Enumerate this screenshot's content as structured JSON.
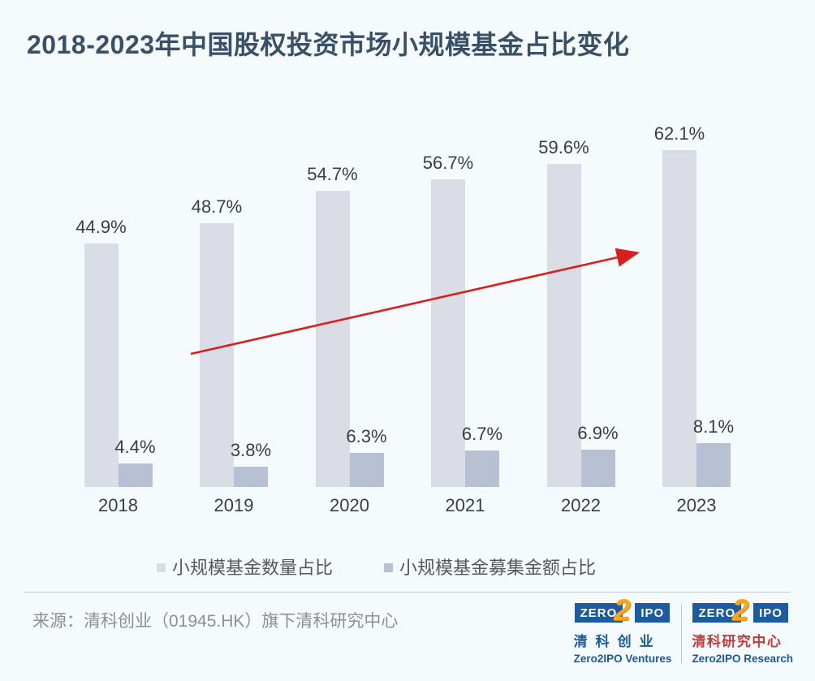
{
  "title": "2018-2023年中国股权投资市场小规模基金占比变化",
  "chart_data": {
    "type": "bar",
    "title": "2018-2023年中国股权投资市场小规模基金占比变化",
    "categories": [
      "2018",
      "2019",
      "2020",
      "2021",
      "2022",
      "2023"
    ],
    "series": [
      {
        "name": "小规模基金数量占比",
        "values": [
          44.9,
          48.7,
          54.7,
          56.7,
          59.6,
          62.1
        ],
        "labels": [
          "44.9%",
          "48.7%",
          "54.7%",
          "56.7%",
          "59.6%",
          "62.1%"
        ],
        "color": "#dadce6"
      },
      {
        "name": "小规模基金募集金额占比",
        "values": [
          4.4,
          3.8,
          6.3,
          6.7,
          6.9,
          8.1
        ],
        "labels": [
          "4.4%",
          "3.8%",
          "6.3%",
          "6.7%",
          "6.9%",
          "8.1%"
        ],
        "color": "#b8c1d3"
      }
    ],
    "xlabel": "",
    "ylabel": "",
    "ylim": [
      0,
      70
    ],
    "grid": false,
    "axis_lines": false,
    "legend_position": "bottom",
    "annotations": [
      {
        "type": "arrow",
        "color": "#d9201f",
        "description": "red upward trend arrow across bars"
      }
    ]
  },
  "colors": {
    "background": "#f5fafc",
    "title_text": "#3a5069",
    "value_label_text": "#3d3d3d",
    "axis_label_text": "#3d3d3d",
    "legend_text": "#575757",
    "source_text": "#8f8f8f",
    "divider": "#c9c9c9",
    "logo_blue": "#1c5aa2",
    "logo_red": "#bf3a3b",
    "logo_yellow": "#f8a81e",
    "arrow_red": "#d9201f"
  },
  "footer": {
    "source": "来源：清科创业（01945.HK）旗下清科研究中心",
    "logos": [
      {
        "mark_left": "ZERO",
        "mark_mid": "2",
        "mark_right": "IPO",
        "cn": "清科创业",
        "en": "Zero2IPO Ventures"
      },
      {
        "mark_left": "ZERO",
        "mark_mid": "2",
        "mark_right": "IPO",
        "cn": "清科研究中心",
        "en": "Zero2IPO Research"
      }
    ]
  }
}
